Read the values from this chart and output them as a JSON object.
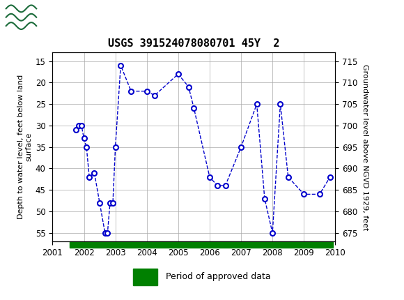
{
  "title": "USGS 391524078080701 45Y  2",
  "ylabel_left": "Depth to water level, feet below land\nsurface",
  "ylabel_right": "Groundwater level above NGVD 1929, feet",
  "xlim": [
    2001,
    2010
  ],
  "ylim_left": [
    57,
    13
  ],
  "ylim_right": [
    673,
    717
  ],
  "yticks_left": [
    15,
    20,
    25,
    30,
    35,
    40,
    45,
    50,
    55
  ],
  "yticks_right": [
    715,
    710,
    705,
    700,
    695,
    690,
    685,
    680,
    675
  ],
  "xticks": [
    2001,
    2002,
    2003,
    2004,
    2005,
    2006,
    2007,
    2008,
    2009,
    2010
  ],
  "data_x": [
    2001.75,
    2001.83,
    2001.92,
    2002.0,
    2002.08,
    2002.17,
    2002.33,
    2002.5,
    2002.67,
    2002.75,
    2002.83,
    2002.92,
    2003.0,
    2003.17,
    2003.5,
    2004.0,
    2004.25,
    2005.0,
    2005.33,
    2005.5,
    2006.0,
    2006.25,
    2006.5,
    2007.0,
    2007.5,
    2007.75,
    2008.0,
    2008.25,
    2008.5,
    2009.0,
    2009.5,
    2009.83
  ],
  "data_depth": [
    31,
    30,
    30,
    33,
    35,
    42,
    41,
    48,
    55,
    55,
    48,
    48,
    35,
    16,
    22,
    22,
    23,
    18,
    21,
    26,
    42,
    44,
    44,
    35,
    25,
    47,
    55,
    25,
    42,
    46,
    46,
    42
  ],
  "line_color": "#0000CC",
  "marker_color": "#0000CC",
  "marker_face": "#FFFFFF",
  "grid_color": "#AAAAAA",
  "background_color": "#FFFFFF",
  "header_color": "#1B6B3A",
  "approved_bar_color": "#008000",
  "legend_label": "Period of approved data",
  "approved_bar_xstart": 2001.55,
  "approved_bar_xend": 2009.93
}
